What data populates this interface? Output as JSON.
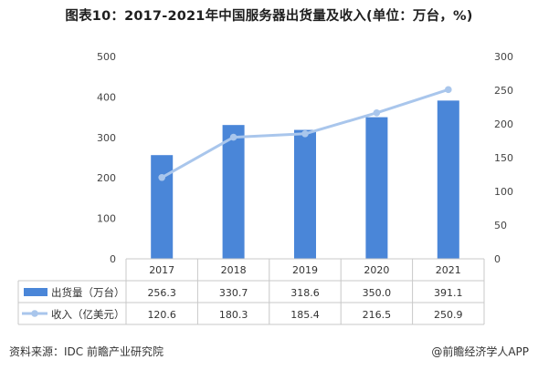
{
  "title": "图表10：2017-2021年中国服务器出货量及收入(单位：万台，%)",
  "source": "资料来源：IDC 前瞻产业研究院",
  "brand": "@前瞻经济学人APP",
  "chart_data": {
    "type": "bar+line",
    "categories": [
      "2017",
      "2018",
      "2019",
      "2020",
      "2021"
    ],
    "series": [
      {
        "name": "出货量（万台）",
        "type": "bar",
        "axis": "left",
        "values": [
          256.3,
          330.7,
          318.6,
          350.0,
          391.1
        ],
        "labels": [
          "256.3",
          "330.7",
          "318.6",
          "350.0",
          "391.1"
        ],
        "color": "#4a86d8"
      },
      {
        "name": "收入（亿美元）",
        "type": "line",
        "axis": "right",
        "values": [
          120.6,
          180.3,
          185.4,
          216.5,
          250.9
        ],
        "labels": [
          "120.6",
          "180.3",
          "185.4",
          "216.5",
          "250.9"
        ],
        "color": "#a9c6ec"
      }
    ],
    "y_left": {
      "lim": [
        0,
        500
      ],
      "ticks": [
        "0",
        "100",
        "200",
        "300",
        "400",
        "500"
      ]
    },
    "y_right": {
      "lim": [
        0,
        300
      ],
      "ticks": [
        "0",
        "50",
        "100",
        "150",
        "200",
        "250",
        "300"
      ]
    },
    "grid": false,
    "legend": "data table"
  }
}
